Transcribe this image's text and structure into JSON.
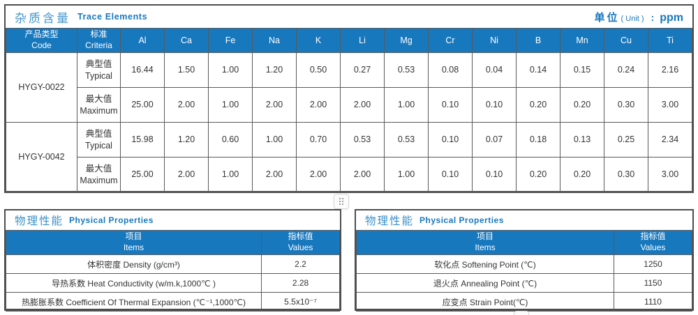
{
  "colors": {
    "header_blue": "#1878be",
    "title_blue_light": "#4596cd",
    "grid_line": "#595959",
    "cell_text": "#333333"
  },
  "trace": {
    "title_cn": "杂质含量",
    "title_en": "Trace Elements",
    "unit_cn": "单位",
    "unit_en": "( Unit )",
    "unit_colon": ":",
    "unit_value": "ppm",
    "col1_cn": "产品类型",
    "col1_en": "Code",
    "col2_cn": "标准",
    "col2_en": "Criteria",
    "elements": [
      "Al",
      "Ca",
      "Fe",
      "Na",
      "K",
      "Li",
      "Mg",
      "Cr",
      "Ni",
      "B",
      "Mn",
      "Cu",
      "Ti"
    ],
    "products": [
      {
        "code": "HYGY-0022",
        "rows": [
          {
            "label_cn": "典型值",
            "label_en": "Typical",
            "values": [
              "16.44",
              "1.50",
              "1.00",
              "1.20",
              "0.50",
              "0.27",
              "0.53",
              "0.08",
              "0.04",
              "0.14",
              "0.15",
              "0.24",
              "2.16"
            ]
          },
          {
            "label_cn": "最大值",
            "label_en": "Maximum",
            "values": [
              "25.00",
              "2.00",
              "1.00",
              "2.00",
              "2.00",
              "2.00",
              "1.00",
              "0.10",
              "0.10",
              "0.20",
              "0.20",
              "0.30",
              "3.00"
            ]
          }
        ]
      },
      {
        "code": "HYGY-0042",
        "rows": [
          {
            "label_cn": "典型值",
            "label_en": "Typical",
            "values": [
              "15.98",
              "1.20",
              "0.60",
              "1.00",
              "0.70",
              "0.53",
              "0.53",
              "0.10",
              "0.07",
              "0.18",
              "0.13",
              "0.25",
              "2.34"
            ]
          },
          {
            "label_cn": "最大值",
            "label_en": "Maximum",
            "values": [
              "25.00",
              "2.00",
              "1.00",
              "2.00",
              "2.00",
              "2.00",
              "1.00",
              "0.10",
              "0.10",
              "0.20",
              "0.20",
              "0.30",
              "3.00"
            ]
          }
        ]
      }
    ]
  },
  "phys_left": {
    "title_cn": "物理性能",
    "title_en": "Physical Properties",
    "col_item_cn": "项目",
    "col_item_en": "Items",
    "col_val_cn": "指标值",
    "col_val_en": "Values",
    "rows": [
      {
        "item": "体积密度 Density (g/cm³)",
        "value": "2.2"
      },
      {
        "item": "导热系数 Heat Conductivity (w/m.k,1000℃ )",
        "value": "2.28"
      },
      {
        "item": "热膨胀系数 Coefficient Of Thermal Expansion (℃⁻¹,1000℃)",
        "value": "5.5x10⁻⁷"
      }
    ]
  },
  "phys_right": {
    "title_cn": "物理性能",
    "title_en": "Physical Properties",
    "col_item_cn": "项目",
    "col_item_en": "Items",
    "col_val_cn": "指标值",
    "col_val_en": "Values",
    "rows": [
      {
        "item": "软化点 Softening Point (℃)",
        "value": "1250"
      },
      {
        "item": "退火点 Annealing Point (℃)",
        "value": "1150"
      },
      {
        "item": "应变点 Strain Point(℃)",
        "value": "1110"
      }
    ]
  }
}
